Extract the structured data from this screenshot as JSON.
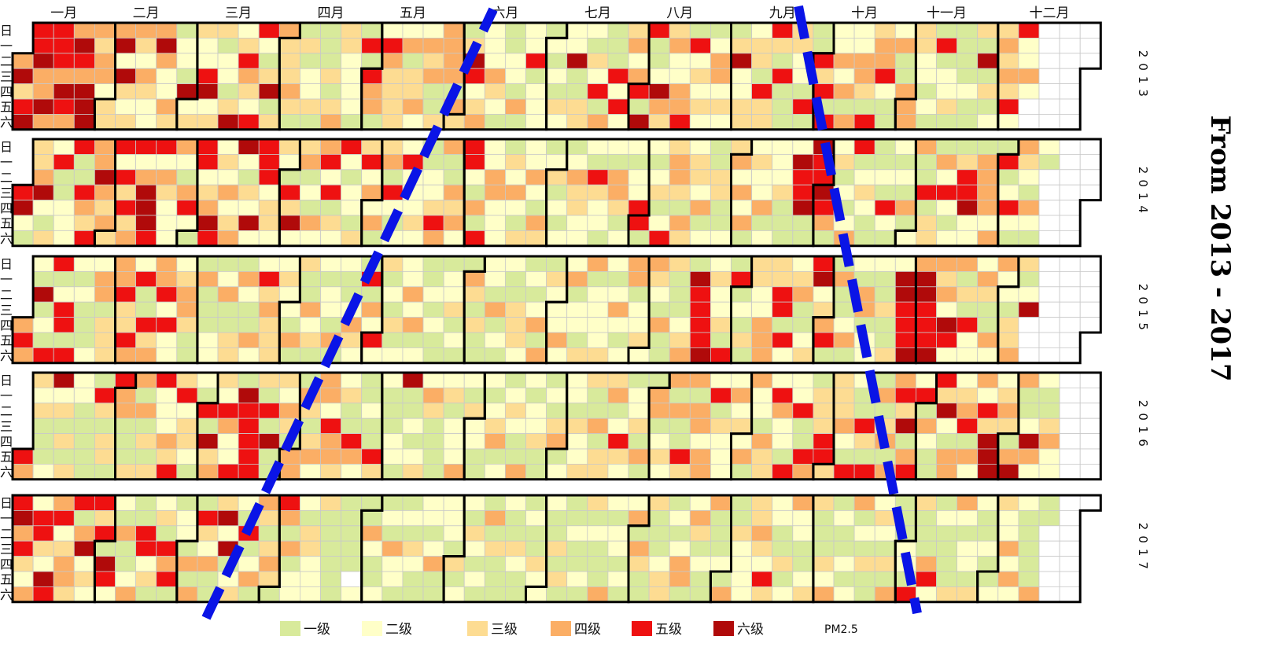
{
  "chart_data": {
    "type": "heatmap",
    "subtype": "calendar",
    "title": "From 2013 - 2017",
    "variable": "PM2.5",
    "years": [
      "2013",
      "2014",
      "2015",
      "2016",
      "2017"
    ],
    "months": [
      "一月",
      "二月",
      "三月",
      "四月",
      "五月",
      "六月",
      "七月",
      "八月",
      "九月",
      "十月",
      "十一月",
      "十二月"
    ],
    "weekdays": [
      "日",
      "一",
      "二",
      "三",
      "四",
      "五",
      "六"
    ],
    "levels": [
      {
        "label": "一级",
        "color": "#d8ea9b"
      },
      {
        "label": "二级",
        "color": "#ffffc8"
      },
      {
        "label": "三级",
        "color": "#fddc92"
      },
      {
        "label": "四级",
        "color": "#fbae65"
      },
      {
        "label": "五级",
        "color": "#ee1111"
      },
      {
        "label": "六级",
        "color": "#b00a0a"
      }
    ],
    "missing_color": "#ffffff",
    "trend_lines_color": "#0a14e6",
    "legend_position": "bottom",
    "daily_levels": {
      "2013": "4635655644645554654465466643442334626323432432246422431221623322562331221362354325521361343334311312231111313433222211515441254333324133422434113444414313652342224321112214122512221212132226113321325141115252342451651126433422445152323212442321362233233153353151113322151115351522424142244315344521124114443322121151223111112113161312343435252242",
      "2014": "5621334621325112225115435446434352535345246665524322242145215523465232423462132625552332321536234121424525132521221335242413415212252223211223544114342552141522442221324213224214312312121243322215322121443122122551212312534431432332412113311234242412322412222311126556116556541231212451232111121521212141241151331425212135562214444241512521432142121",
      "2015": "4542161215512551521211122441333445335425115344452522234431114111221241133142114225343332322141311423121221412112432151425231213122242412112121112231211431311221412121133321212414132224224122134122223212421244122324321411311123416555562322315151213133224443355152234112356234511411241214412221131132665556466555643426524131522243114242213343126",
      "2016": "5432311126231313221111115313315441113414131352224353523321215163432542251655555315161132431441431342442544323115421121153211122161121232431111231222421322112123412123211421223111213412221322331141333412532122314114412324141153414424425132222423241422143325422152251154133355333342152115315141341445361452514211536214423451424253666234314641126422113422",
      "2017": "5645324255326545234435146232535165221411241155231231545112214141532411362612321512414313431541412221332223111111111110211421121214221121321122124112221312213212114131112113211121132221131311121121312111421221212414311311123312124412431211411121411322223343253221131242211233111324121121241213112321314111221531114521211113421221321121123224242211111411"
    }
  }
}
